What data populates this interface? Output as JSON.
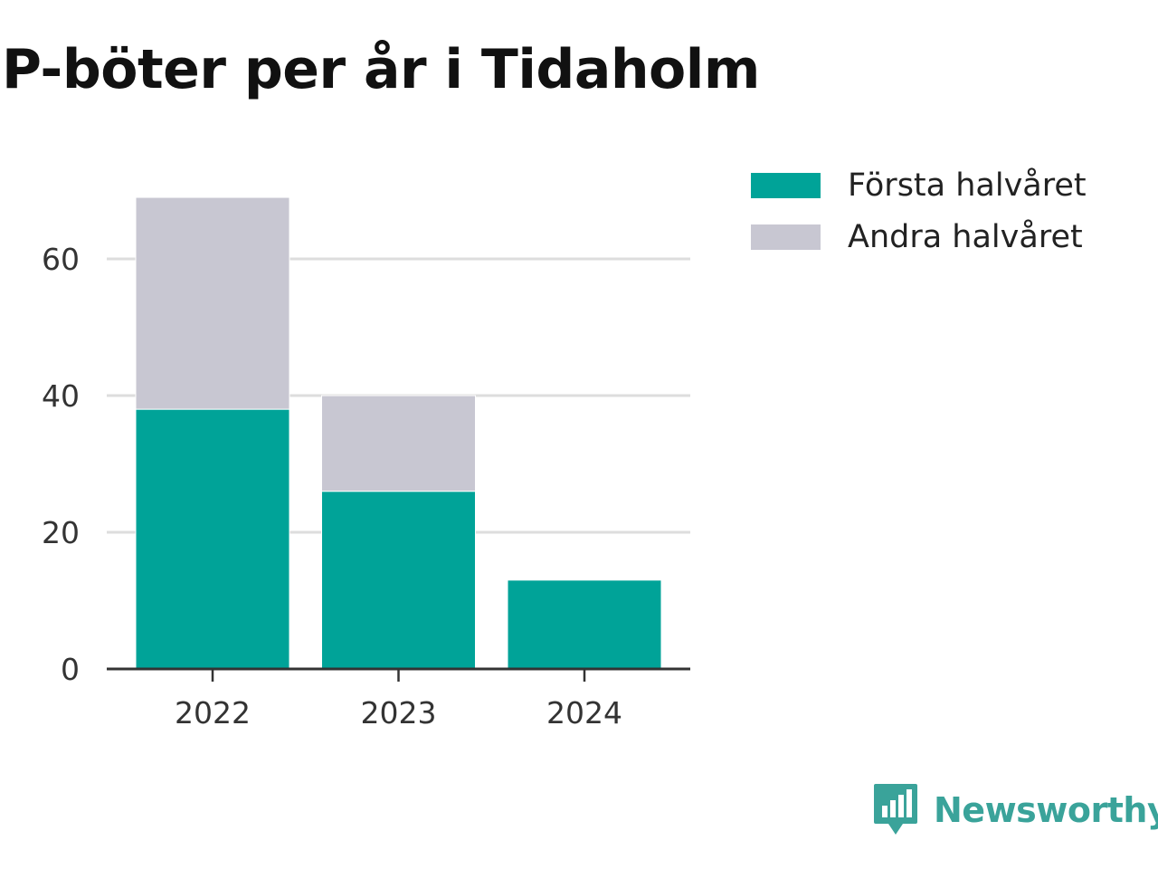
{
  "chart_data": {
    "type": "bar",
    "stacked": true,
    "title": "P-böter per år i Tidaholm",
    "xlabel": "",
    "ylabel": "",
    "categories": [
      "2022",
      "2023",
      "2024"
    ],
    "series": [
      {
        "name": "Första halvåret",
        "color": "#00a398",
        "values": [
          38,
          26,
          13
        ]
      },
      {
        "name": "Andra halvåret",
        "color": "#c8c7d2",
        "values": [
          31,
          14,
          0
        ]
      }
    ],
    "ylim": [
      0,
      69
    ],
    "yticks": [
      0,
      20,
      40,
      60
    ],
    "grid": true,
    "legend": "top-right"
  },
  "brand": {
    "name": "Newsworthy",
    "color": "#3aa39a",
    "icon": "bar-chart-speech-bubble-icon"
  }
}
